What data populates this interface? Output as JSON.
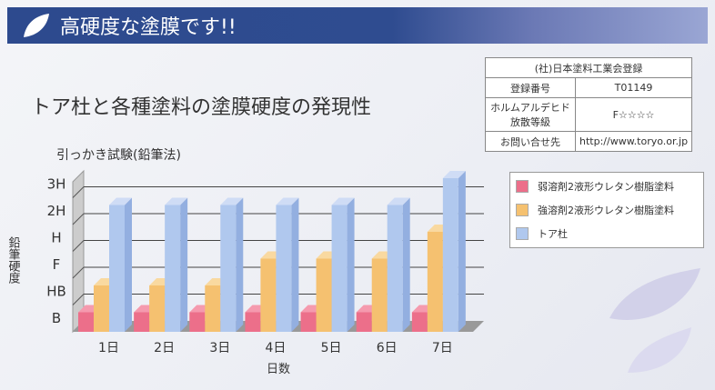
{
  "banner": {
    "title": "高硬度な塗膜です!!"
  },
  "heading": "トア杜と各種塗料の塗膜硬度の発現性",
  "registration": {
    "header": "(社)日本塗料工業会登録",
    "rows": [
      {
        "label": "登録番号",
        "value": "T01149"
      },
      {
        "label": "ホルムアルデヒド放散等級",
        "value": "F☆☆☆☆"
      },
      {
        "label": "お問い合せ先",
        "value": "http://www.toryo.or.jp"
      }
    ]
  },
  "chart_data": {
    "type": "bar",
    "title": "引っかき試験(鉛筆法)",
    "xlabel": "日数",
    "ylabel": "鉛筆硬度",
    "yticks": [
      "B",
      "HB",
      "F",
      "H",
      "2H",
      "3H"
    ],
    "categories": [
      "1日",
      "2日",
      "3日",
      "4日",
      "5日",
      "6日",
      "7日"
    ],
    "series": [
      {
        "name": "弱溶剤2液形ウレタン樹脂塗料",
        "color": "#ec6f8a",
        "values": [
          "B",
          "B",
          "B",
          "B",
          "B",
          "B",
          "B"
        ]
      },
      {
        "name": "強溶剤2液形ウレタン樹脂塗料",
        "color": "#f5c170",
        "values": [
          "HB",
          "HB",
          "HB",
          "F",
          "F",
          "F",
          "H"
        ]
      },
      {
        "name": "トア杜",
        "color": "#b0c8ee",
        "values": [
          "2H",
          "2H",
          "2H",
          "2H",
          "2H",
          "2H",
          "3H"
        ]
      }
    ]
  }
}
